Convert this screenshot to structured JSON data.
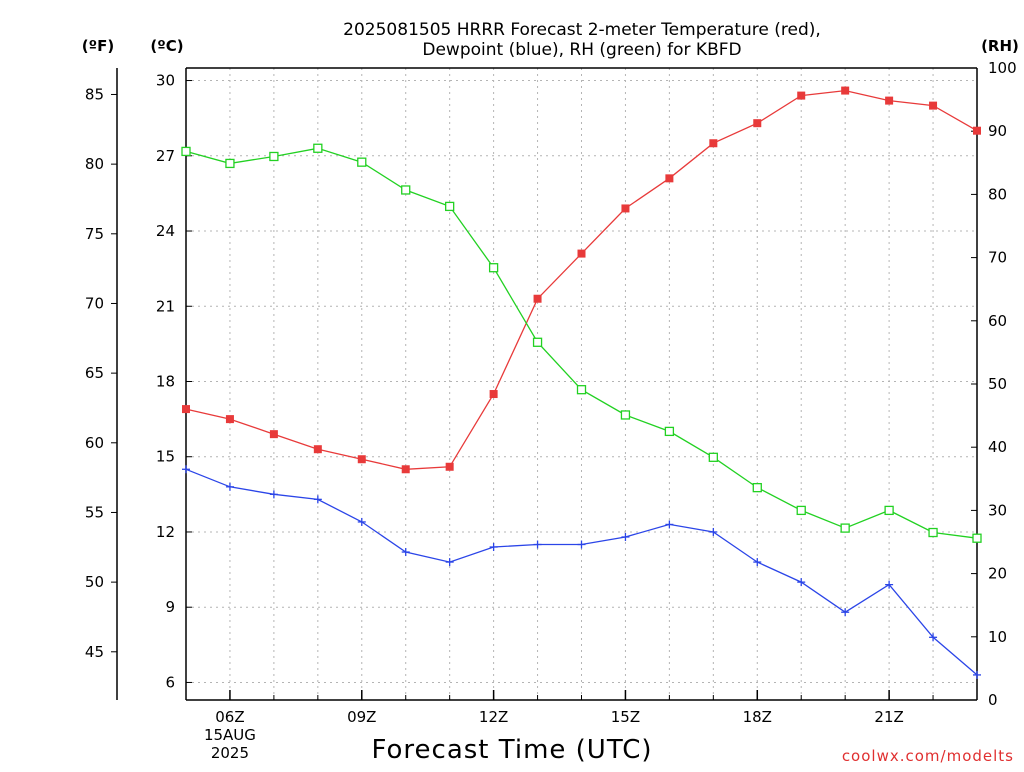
{
  "title": {
    "line1": "2025081505 HRRR Forecast 2-meter Temperature (red),",
    "line2": "Dewpoint (blue), RH (green) for KBFD"
  },
  "units": {
    "fahrenheit": "(ºF)",
    "celsius": "(ºC)",
    "rh": "(RH)"
  },
  "xlabel": "Forecast Time (UTC)",
  "credit": "coolwx.com/modelts",
  "colors": {
    "temperature": "#e83a3a",
    "dewpoint": "#2b45e8",
    "rh": "#22d122",
    "axis": "#000000",
    "grid": "#b4b4b4",
    "credit": "#e03030"
  },
  "chart_data": {
    "type": "line",
    "x": [
      "05Z",
      "06Z",
      "07Z",
      "08Z",
      "09Z",
      "10Z",
      "11Z",
      "12Z",
      "13Z",
      "14Z",
      "15Z",
      "16Z",
      "17Z",
      "18Z",
      "19Z",
      "20Z",
      "21Z",
      "22Z",
      "23Z"
    ],
    "x_tick_labels": [
      {
        "at": "06Z",
        "lines": [
          "06Z",
          "15AUG",
          "2025"
        ]
      },
      {
        "at": "09Z",
        "lines": [
          "09Z"
        ]
      },
      {
        "at": "12Z",
        "lines": [
          "12Z"
        ]
      },
      {
        "at": "15Z",
        "lines": [
          "15Z"
        ]
      },
      {
        "at": "18Z",
        "lines": [
          "18Z"
        ]
      },
      {
        "at": "21Z",
        "lines": [
          "21Z"
        ]
      }
    ],
    "y_left_celsius": {
      "range": [
        5.3,
        30.5
      ],
      "ticks": [
        6,
        9,
        12,
        15,
        18,
        21,
        24,
        27,
        30
      ]
    },
    "y_left_fahrenheit": {
      "ticks": [
        45,
        50,
        55,
        60,
        65,
        70,
        75,
        80,
        85
      ]
    },
    "y_right_rh": {
      "range": [
        0,
        100
      ],
      "ticks": [
        0,
        10,
        20,
        30,
        40,
        50,
        60,
        70,
        80,
        90,
        100
      ]
    },
    "grid": true,
    "series": [
      {
        "name": "Temperature",
        "axis": "celsius",
        "marker": "filled-square",
        "color": "#e83a3a",
        "values": [
          16.9,
          16.5,
          15.9,
          15.3,
          14.9,
          14.5,
          14.6,
          17.5,
          21.3,
          23.1,
          24.9,
          26.1,
          27.5,
          28.3,
          29.4,
          29.6,
          29.2,
          29.0,
          28.0
        ]
      },
      {
        "name": "Dewpoint",
        "axis": "celsius",
        "marker": "plus",
        "color": "#2b45e8",
        "values": [
          14.5,
          13.8,
          13.5,
          13.3,
          12.4,
          11.2,
          10.8,
          11.4,
          11.5,
          11.5,
          11.8,
          12.3,
          12.0,
          10.8,
          10.0,
          8.8,
          9.9,
          7.8,
          6.3
        ]
      },
      {
        "name": "RH",
        "axis": "rh",
        "marker": "open-square",
        "color": "#22d122",
        "values": [
          86.8,
          84.9,
          86.0,
          87.3,
          85.1,
          80.7,
          78.1,
          68.4,
          56.6,
          49.1,
          45.1,
          42.5,
          38.4,
          33.6,
          30.0,
          27.2,
          30.0,
          26.5,
          25.6
        ]
      }
    ]
  }
}
